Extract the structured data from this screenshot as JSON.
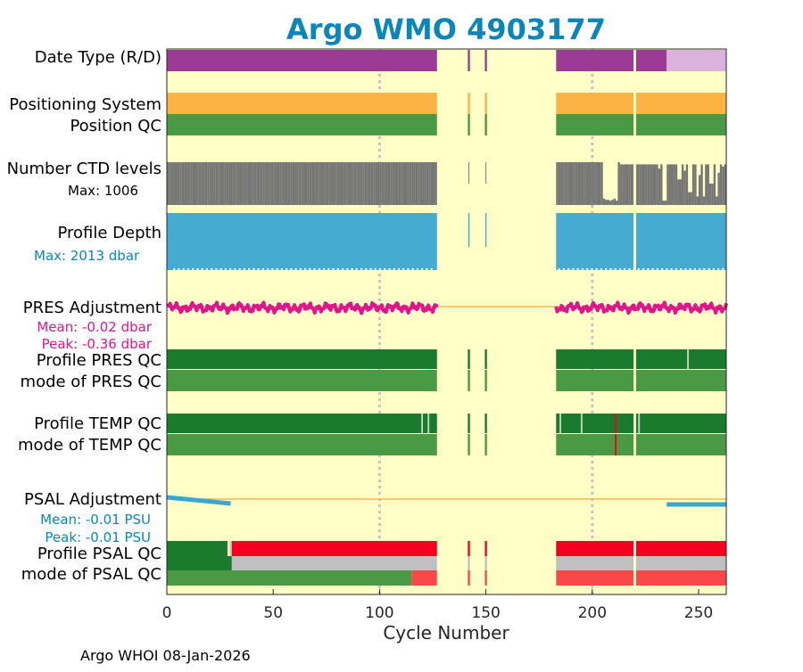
{
  "title": "Argo WMO 4903177",
  "footer": "Argo WHOI 08-Jan-2026",
  "colors": {
    "title": "#0a87b8",
    "background_plot": "#ffffc8",
    "data_type_R": "#9b3b96",
    "data_type_D": "#dbb3da",
    "positioning": "#fbb444",
    "qc_good_dark": "#1a7a2e",
    "qc_good": "#4a9a45",
    "qc_bad": "#f5001f",
    "qc_bad_light": "#f84848",
    "qc_probable": "#c0c0c0",
    "ctd_levels": "#767676",
    "profile_depth": "#45abd0",
    "pres_adjustment": "#e0158c",
    "psal_adjustment": "#3aa6d2",
    "adjust_zero_line": "#f5b950",
    "grid": "#c4c4c4",
    "qc_light_mark": "#bdd9b4"
  },
  "chart_data": {
    "type": "table",
    "title": "Argo WMO 4903177",
    "xlabel": "Cycle Number",
    "xlim": [
      0,
      263
    ],
    "xticks": [
      0,
      50,
      100,
      150,
      200,
      250
    ],
    "grid_x": [
      100,
      200
    ],
    "cycle_segments": [
      [
        0,
        127
      ],
      [
        141.5,
        142.5
      ],
      [
        149.5,
        150.5
      ],
      [
        183,
        263
      ]
    ],
    "gap_marks": [
      220
    ],
    "rows": [
      {
        "label": "Date Type (R/D)",
        "series": "data_type",
        "segments": [
          {
            "from": 0,
            "to": 235,
            "value": "R"
          },
          {
            "from": 235,
            "to": 263,
            "value": "D"
          }
        ]
      },
      {
        "label": "Positioning System",
        "series": "positioning",
        "value": "GPS"
      },
      {
        "label": "Position QC",
        "series": "position_qc",
        "value": 1
      },
      {
        "label": "Number CTD levels",
        "series": "ctd_levels",
        "max_label": "Max: 1006",
        "max": 1006
      },
      {
        "label": "Profile Depth",
        "series": "profile_depth",
        "max_label": "Max: 2013 dbar",
        "max": 2013
      },
      {
        "label": "PRES Adjustment",
        "series": "pres_adjustment",
        "mean_label": "Mean: -0.02 dbar",
        "peak_label": "Peak: -0.36 dbar",
        "mean": -0.02,
        "peak": -0.36
      },
      {
        "label": "Profile PRES QC",
        "series": "profile_pres_qc",
        "value": "A",
        "light_marks": [
          245
        ]
      },
      {
        "label": "mode of PRES QC",
        "series": "mode_pres_qc",
        "value": 1
      },
      {
        "label": "Profile TEMP QC",
        "series": "profile_temp_qc",
        "value": "A",
        "light_marks": [
          120,
          123,
          185,
          195,
          222
        ],
        "bad_marks": [
          211
        ]
      },
      {
        "label": "mode of TEMP QC",
        "series": "mode_temp_qc",
        "value": 1,
        "bad_marks": [
          211
        ]
      },
      {
        "label": "PSAL Adjustment",
        "series": "psal_adjustment",
        "mean_label": "Mean: -0.01 PSU",
        "peak_label": "Peak: -0.01 PSU",
        "mean": -0.01,
        "peak": -0.01
      },
      {
        "label": "Profile PSAL QC",
        "series": "profile_psal_qc",
        "segments": [
          {
            "from": 0,
            "to": 28.5,
            "value": "A"
          },
          {
            "from": 29.5,
            "to": 30.5,
            "value": "B"
          },
          {
            "from": 30.5,
            "to": 263,
            "value": "F"
          }
        ]
      },
      {
        "label": "mode of PSAL QC",
        "series": "mode_psal_qc",
        "segments": [
          {
            "from": 0,
            "to": 115,
            "value": 1
          },
          {
            "from": 115,
            "to": 263,
            "value": 4
          }
        ]
      }
    ]
  }
}
